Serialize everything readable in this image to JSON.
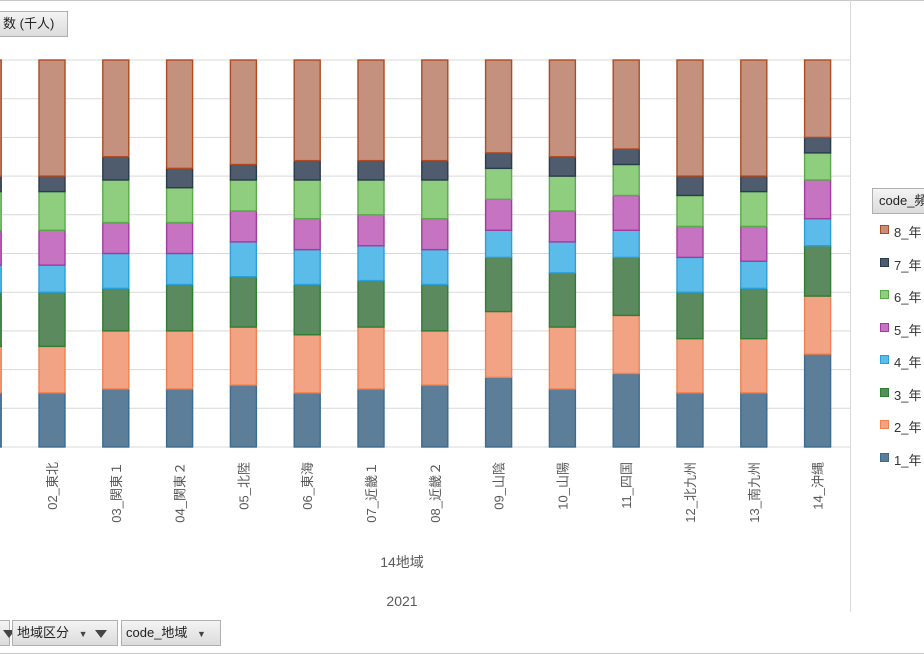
{
  "value_field_button": {
    "label": "数 (千人)"
  },
  "legend_field_button": {
    "label": "code_頻"
  },
  "axis_field_buttons": [
    {
      "label": "地域区分",
      "icon": "filter-icon"
    },
    {
      "label": "code_地域",
      "icon": "dropdown-arrow-icon"
    }
  ],
  "chart_data": {
    "type": "bar",
    "stacked": true,
    "normalized_percent": true,
    "x_axis_title": "14地域",
    "x_axis_group": "2021",
    "categories": [
      "02_東北",
      "03_関東１",
      "04_関東２",
      "05_北陸",
      "06_東海",
      "07_近畿１",
      "08_近畿２",
      "09_山陰",
      "10_山陽",
      "11_四国",
      "12_北九州",
      "13_南九州",
      "14_沖縄"
    ],
    "ylim": [
      0,
      100
    ],
    "series": [
      {
        "name": "1_年",
        "color": "#5d7e98",
        "border": "#3b6b8f",
        "values": [
          14,
          15,
          15,
          16,
          14,
          15,
          16,
          18,
          15,
          19,
          14,
          14,
          24
        ]
      },
      {
        "name": "2_年",
        "color": "#f2a383",
        "border": "#f08050",
        "values": [
          12,
          15,
          15,
          15,
          15,
          16,
          14,
          17,
          16,
          15,
          14,
          14,
          15
        ]
      },
      {
        "name": "3_年",
        "color": "#5c8a5f",
        "border": "#2e7d32",
        "values": [
          14,
          11,
          12,
          13,
          13,
          12,
          12,
          14,
          14,
          15,
          12,
          13,
          13
        ]
      },
      {
        "name": "4_年",
        "color": "#5bbcea",
        "border": "#2a9fd8",
        "values": [
          7,
          9,
          8,
          9,
          9,
          9,
          9,
          7,
          8,
          7,
          9,
          7,
          7
        ]
      },
      {
        "name": "5_年",
        "color": "#c674c1",
        "border": "#a23b9e",
        "values": [
          9,
          8,
          8,
          8,
          8,
          8,
          8,
          8,
          8,
          9,
          8,
          9,
          10
        ]
      },
      {
        "name": "6_年",
        "color": "#8fce7f",
        "border": "#5aa94a",
        "values": [
          10,
          11,
          9,
          8,
          10,
          9,
          10,
          8,
          9,
          8,
          8,
          9,
          7
        ]
      },
      {
        "name": "7_年",
        "color": "#4e5c6e",
        "border": "#2b3b4e",
        "values": [
          4,
          6,
          5,
          4,
          5,
          5,
          5,
          4,
          5,
          4,
          5,
          4,
          4
        ]
      },
      {
        "name": "8_年",
        "color": "#c5917f",
        "border": "#b04a20",
        "values": [
          30,
          25,
          28,
          27,
          26,
          26,
          26,
          24,
          25,
          23,
          30,
          30,
          20
        ]
      }
    ]
  }
}
